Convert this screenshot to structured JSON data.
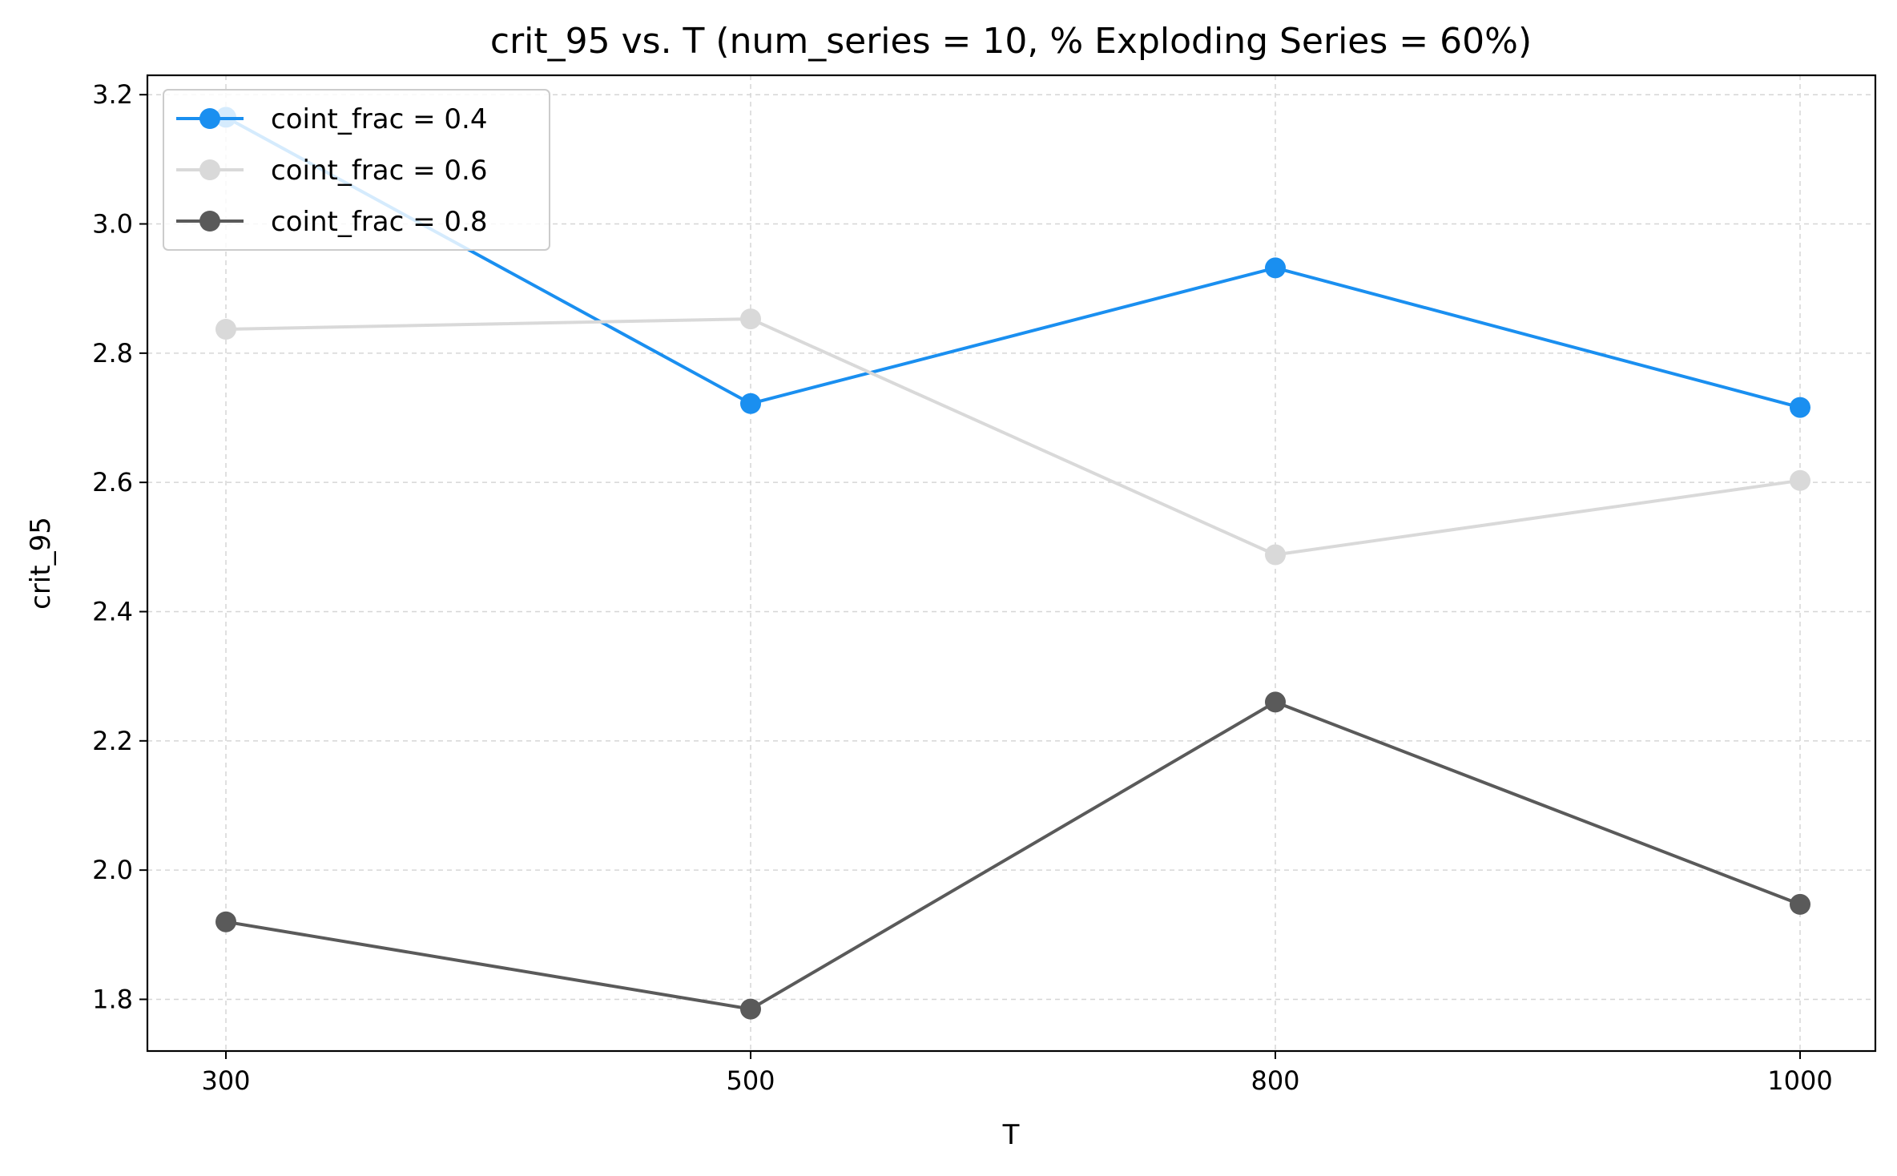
{
  "chart_data": {
    "type": "line",
    "title": "crit_95 vs. T  (num_series = 10, % Exploding Series = 60%)",
    "xlabel": "T",
    "ylabel": "crit_95",
    "categories": [
      "300",
      "500",
      "800",
      "1000"
    ],
    "yticks": [
      "1.8",
      "2.0",
      "2.2",
      "2.4",
      "2.6",
      "2.8",
      "3.0",
      "3.2"
    ],
    "ylim": [
      1.72,
      3.23
    ],
    "grid": true,
    "legend_position": "top-left",
    "series": [
      {
        "name": "coint_frac = 0.4",
        "color": "#1a8ff0",
        "values": [
          3.165,
          2.722,
          2.932,
          2.716
        ]
      },
      {
        "name": "coint_frac = 0.6",
        "color": "#d9d9d9",
        "values": [
          2.837,
          2.853,
          2.488,
          2.603
        ]
      },
      {
        "name": "coint_frac = 0.8",
        "color": "#5a5a5a",
        "values": [
          1.92,
          1.785,
          2.26,
          1.947
        ]
      }
    ]
  }
}
